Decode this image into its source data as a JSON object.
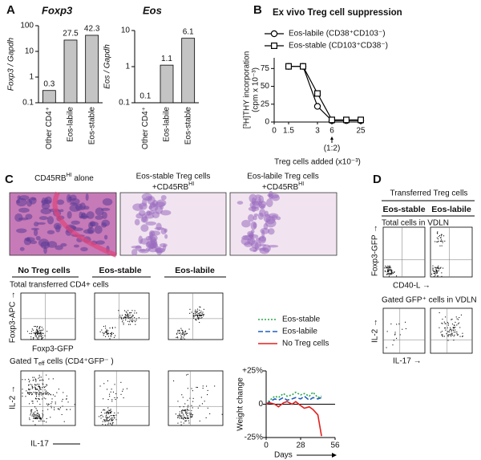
{
  "panel_labels": [
    "A",
    "B",
    "C",
    "D"
  ],
  "chart_data": [
    {
      "type": "bar",
      "title": "Foxp3",
      "y_label": "Foxp3 / Gapdh",
      "categories": [
        "Other CD4⁺",
        "Eos-labile",
        "Eos-stable"
      ],
      "values": [
        0.3,
        27.5,
        42.3
      ],
      "color": "#c4c4c4",
      "log_y": true,
      "ylim": [
        0.1,
        100
      ],
      "yticks": [
        0.1,
        1,
        10,
        100
      ]
    },
    {
      "type": "bar",
      "title": "Eos",
      "y_label": "Eos / Gapdh",
      "categories": [
        "Other CD4⁺",
        "Eos-labile",
        "Eos-stable"
      ],
      "values": [
        0.1,
        1.1,
        6.1
      ],
      "color": "#c4c4c4",
      "log_y": true,
      "ylim": [
        0.1,
        10
      ],
      "yticks": [
        0.1,
        1,
        10
      ]
    },
    {
      "type": "line",
      "title": "Ex vivo Treg cell suppression",
      "x_label": "Treg cells added (x10⁻³)",
      "y_label": [
        "[³H]THY incorporation",
        "(cpm x 10⁻³)"
      ],
      "annotation": "(1:2)",
      "categories": [
        "0",
        "1.5",
        null,
        "3",
        "6",
        null,
        "25"
      ],
      "series": [
        {
          "name": "Eos-labile (CD38⁺CD103⁻)",
          "color": "#000000",
          "marker": "circle",
          "values": [
            null,
            78,
            78,
            22,
            2,
            2,
            2
          ]
        },
        {
          "name": "Eos-stable (CD103⁺CD38⁻)",
          "color": "#000000",
          "marker": "square",
          "values": [
            null,
            78,
            78,
            40,
            3,
            3,
            3
          ]
        }
      ],
      "ylim": [
        0,
        90
      ],
      "yticks": [
        0,
        25,
        50,
        75
      ]
    },
    {
      "type": "line",
      "y_label": "Weight change",
      "x_label": "Days",
      "x": [
        0,
        3,
        7,
        10,
        14,
        17,
        21,
        24,
        28,
        31,
        35,
        38,
        42,
        45
      ],
      "series": [
        {
          "name": "Eos-stable",
          "color": "#2aa84a",
          "line_style": "dotted",
          "values": [
            0,
            3,
            6,
            5,
            8,
            6,
            7,
            9,
            7,
            8,
            6,
            9,
            5,
            6
          ]
        },
        {
          "name": "Eos-labile",
          "color": "#1f5fbf",
          "line_style": "dashed",
          "values": [
            0,
            2,
            4,
            3,
            5,
            3,
            4,
            5,
            4,
            6,
            3,
            5,
            4,
            5
          ]
        },
        {
          "name": "No Treg cells",
          "color": "#e0201e",
          "line_style": "solid",
          "values": [
            0,
            1,
            0,
            -2,
            1,
            2,
            0,
            2,
            -1,
            -3,
            -2,
            -4,
            -8,
            -24
          ]
        }
      ],
      "xlim": [
        0,
        56
      ],
      "xticks": [
        0,
        28,
        56
      ],
      "ylim": [
        -25,
        25
      ],
      "yticks": [
        {
          "value": 25,
          "label": "+25%"
        },
        0,
        {
          "value": -25,
          "label": "-25%"
        }
      ]
    }
  ],
  "histology": [
    {
      "main": "CD45RB",
      "sup": "HI",
      "suffix": " alone"
    },
    {
      "line1": "Eos-stable Treg cells",
      "main": "+CD45RB",
      "sup": "HI"
    },
    {
      "line1": "Eos-labile Treg cells",
      "main": "+CD45RB",
      "sup": "HI"
    }
  ],
  "flow_c": {
    "columns": [
      "No Treg cells",
      "Eos-stable",
      "Eos-labile"
    ],
    "row1": "Total transferred CD4+ cells",
    "row2": [
      "Gated T",
      "eff",
      " cells (CD4⁺GFP⁻ )"
    ],
    "y1": "Foxp3-APC →",
    "x1": "Foxp3-GFP",
    "y2": "IL-2 →",
    "x2": "IL-17"
  },
  "flow_d": {
    "header": "Transferred Treg cells",
    "columns": [
      "Eos-stable",
      "Eos-labile"
    ],
    "row1": "Total cells in VDLN",
    "row2": "Gated GFP⁺ cells in VDLN",
    "y1": "Foxp3-GFP →",
    "x1": "CD40-L →",
    "y2": "IL-2 →",
    "x2": "IL-17 →"
  }
}
